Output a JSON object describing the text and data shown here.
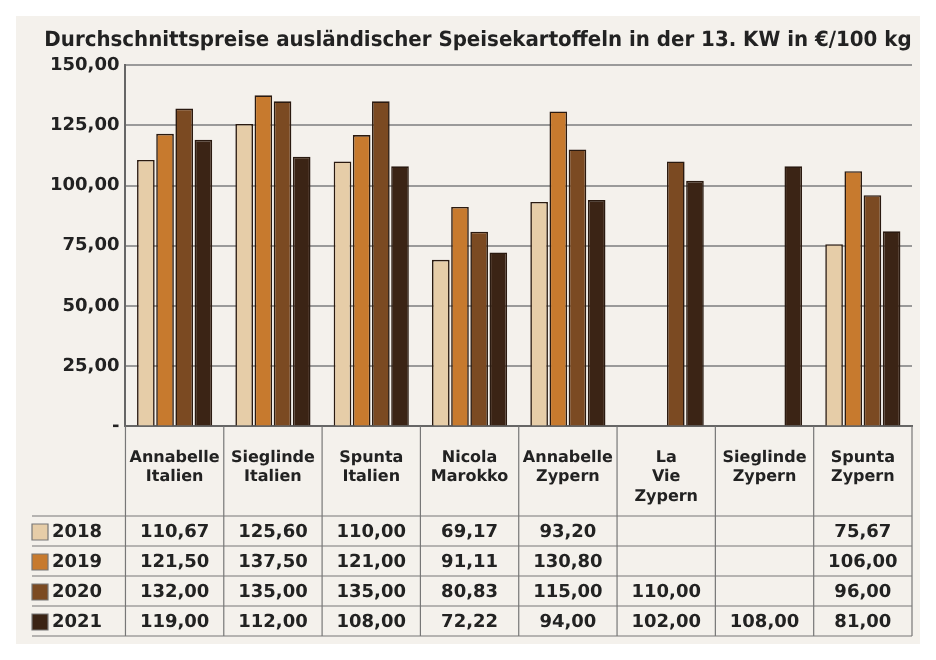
{
  "chart_data": {
    "type": "bar",
    "title": "Durchschnittspreise ausländischer Speisekartoffeln in der 13. KW in €/100 kg",
    "categories": [
      "Annabelle Italien",
      "Sieglinde Italien",
      "Spunta Italien",
      "Nicola Marokko",
      "Annabelle Zypern",
      "La Vie Zypern",
      "Sieglinde Zypern",
      "Spunta Zypern"
    ],
    "series": [
      {
        "name": "2018",
        "color": "#e6cda8",
        "values": [
          110.67,
          125.6,
          110,
          69.17,
          93.2,
          null,
          null,
          75.67
        ],
        "value_labels": [
          "110,67",
          "125,60",
          "110,00",
          "69,17",
          "93,20",
          null,
          null,
          "75,67"
        ]
      },
      {
        "name": "2019",
        "color": "#c77a2e",
        "values": [
          121.5,
          137.5,
          121,
          91.11,
          130.8,
          null,
          null,
          106
        ],
        "value_labels": [
          "121,50",
          "137,50",
          "121,00",
          "91,11",
          "130,80",
          null,
          null,
          "106,00"
        ]
      },
      {
        "name": "2020",
        "color": "#7b4a22",
        "values": [
          132,
          135,
          135,
          80.83,
          115,
          110,
          null,
          96
        ],
        "value_labels": [
          "132,00",
          "135,00",
          "135,00",
          "80,83",
          "115,00",
          "110,00",
          null,
          "96,00"
        ]
      },
      {
        "name": "2021",
        "color": "#3b2415",
        "values": [
          119,
          112,
          108,
          72.22,
          94,
          102,
          108,
          81
        ],
        "value_labels": [
          "119,00",
          "112,00",
          "108,00",
          "72,22",
          "94,00",
          "102,00",
          "108,00",
          "81,00"
        ]
      }
    ],
    "ylim": [
      0,
      150
    ],
    "yticks": [
      {
        "value": 0,
        "label": "-"
      },
      {
        "value": 25,
        "label": "25,00"
      },
      {
        "value": 50,
        "label": "50,00"
      },
      {
        "value": 75,
        "label": "75,00"
      },
      {
        "value": 100,
        "label": "100,00"
      },
      {
        "value": 125,
        "label": "125,00"
      },
      {
        "value": 150,
        "label": "150,00"
      }
    ],
    "grid": "y",
    "legend": "bottom left"
  }
}
